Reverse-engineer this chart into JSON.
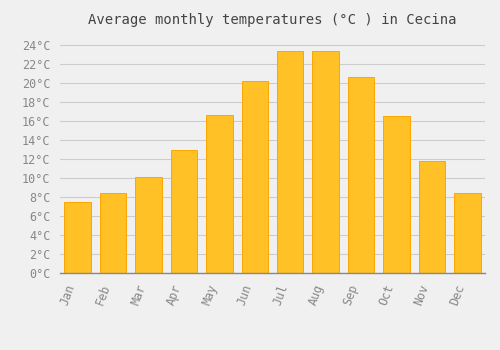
{
  "title": "Average monthly temperatures (°C ) in Cecina",
  "months": [
    "Jan",
    "Feb",
    "Mar",
    "Apr",
    "May",
    "Jun",
    "Jul",
    "Aug",
    "Sep",
    "Oct",
    "Nov",
    "Dec"
  ],
  "values": [
    7.5,
    8.4,
    10.1,
    12.9,
    16.6,
    20.2,
    23.3,
    23.3,
    20.6,
    16.5,
    11.8,
    8.4
  ],
  "bar_color": "#FFC125",
  "bar_edge_color": "#FFA500",
  "background_color": "#F0F0F0",
  "plot_bg_color": "#F0F0F0",
  "grid_color": "#CCCCCC",
  "tick_label_color": "#888888",
  "title_color": "#444444",
  "spine_color": "#888888",
  "ylim": [
    0,
    25
  ],
  "ytick_step": 2,
  "title_fontsize": 10,
  "tick_fontsize": 8.5,
  "bar_width": 0.75
}
